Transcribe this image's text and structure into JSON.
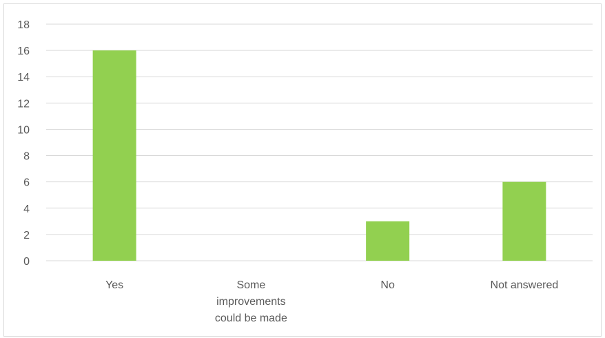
{
  "chart_data": {
    "type": "bar",
    "categories": [
      "Yes",
      "Some improvements could be made",
      "No",
      "Not answered"
    ],
    "category_label_lines": [
      [
        "Yes"
      ],
      [
        "Some",
        "improvements",
        "could be made"
      ],
      [
        "No"
      ],
      [
        "Not answered"
      ]
    ],
    "values": [
      16,
      0,
      3,
      6
    ],
    "ylim": [
      0,
      18
    ],
    "yticks": [
      "0",
      "2",
      "4",
      "6",
      "8",
      "10",
      "12",
      "14",
      "16",
      "18"
    ],
    "title": "",
    "xlabel": "",
    "ylabel": "",
    "grid": true,
    "legend": "none",
    "colors": {
      "bar": "#92d050",
      "grid": "#d9d9d9",
      "text": "#595959"
    }
  }
}
